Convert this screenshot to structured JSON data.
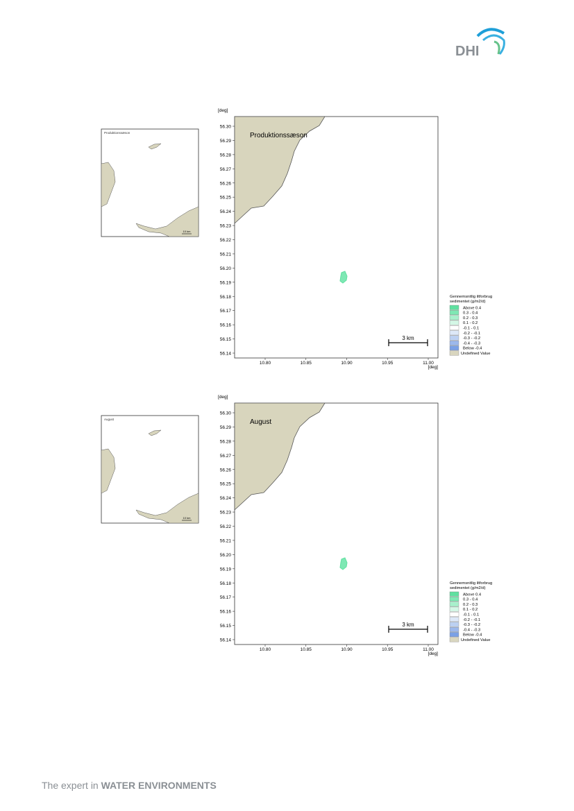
{
  "header": {
    "logo": "DHI"
  },
  "panels": [
    {
      "inset_title": "Produktionssæson",
      "inset_scale": "10 km",
      "title": "Produktionssæson",
      "y_unit": "[deg]",
      "x_unit": "[deg]",
      "yticks": [
        "56.30",
        "56.29",
        "56.28",
        "56.27",
        "56.26",
        "56.25",
        "56.24",
        "56.23",
        "56.22",
        "56.21",
        "56.20",
        "56.19",
        "56.18",
        "56.17",
        "56.16",
        "56.15",
        "56.14"
      ],
      "xticks": [
        "10.80",
        "10.85",
        "10.90",
        "10.95",
        "11.00"
      ],
      "scale_bar": "3 km",
      "legend": {
        "title": [
          "Gennemsnitlig iltforbrug",
          "sedimentet (g/m2/d)"
        ],
        "items": [
          {
            "label": "Above 0.4",
            "color": "#5fe0a0"
          },
          {
            "label": "0.3 - 0.4",
            "color": "#7ee8b4"
          },
          {
            "label": "0.2 - 0.3",
            "color": "#a8f0cc"
          },
          {
            "label": "0.1 - 0.2",
            "color": "#d4f7e6"
          },
          {
            "label": "-0.1 - 0.1",
            "color": "#ffffff"
          },
          {
            "label": "-0.2 - -0.1",
            "color": "#dde8f8"
          },
          {
            "label": "-0.3 - -0.2",
            "color": "#bcd0f2"
          },
          {
            "label": "-0.4 - -0.3",
            "color": "#9cb8ec"
          },
          {
            "label": "Below -0.4",
            "color": "#7aa0e6"
          },
          {
            "label": "Undefined Value",
            "color": "#d9d6bf"
          }
        ]
      }
    },
    {
      "inset_title": "August",
      "inset_scale": "10 km",
      "title": "August",
      "y_unit": "[deg]",
      "x_unit": "[deg]",
      "yticks": [
        "56.30",
        "56.29",
        "56.28",
        "56.27",
        "56.26",
        "56.25",
        "56.24",
        "56.23",
        "56.22",
        "56.21",
        "56.20",
        "56.19",
        "56.18",
        "56.17",
        "56.16",
        "56.15",
        "56.14"
      ],
      "xticks": [
        "10.80",
        "10.85",
        "10.90",
        "10.95",
        "11.00"
      ],
      "scale_bar": "3 km",
      "legend": {
        "title": [
          "Gennemsnitlig iltforbrug",
          "sedimentet (g/m2/d)"
        ],
        "items": [
          {
            "label": "Above 0.4",
            "color": "#5fe0a0"
          },
          {
            "label": "0.3 - 0.4",
            "color": "#7ee8b4"
          },
          {
            "label": "0.2 - 0.3",
            "color": "#a8f0cc"
          },
          {
            "label": "0.1 - 0.2",
            "color": "#d4f7e6"
          },
          {
            "label": "-0.1 - 0.1",
            "color": "#ffffff"
          },
          {
            "label": "-0.2 - -0.1",
            "color": "#dde8f8"
          },
          {
            "label": "-0.3 - -0.2",
            "color": "#bcd0f2"
          },
          {
            "label": "-0.4 - -0.3",
            "color": "#9cb8ec"
          },
          {
            "label": "Below -0.4",
            "color": "#7aa0e6"
          },
          {
            "label": "Undefined Value",
            "color": "#d9d6bf"
          }
        ]
      }
    }
  ],
  "footer": {
    "lead": "The expert in",
    "brand": "WATER ENVIRONMENTS"
  }
}
